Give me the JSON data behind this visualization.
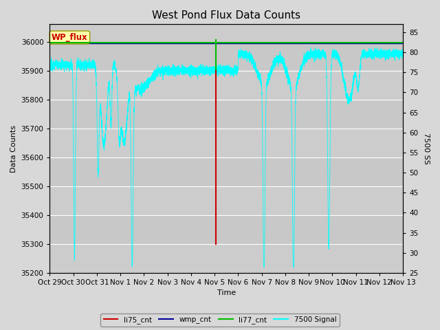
{
  "title": "West Pond Flux Data Counts",
  "xlabel": "Time",
  "ylabel": "Data Counts",
  "ylabel_right": "7500 SS",
  "ylim_left": [
    35200,
    36060
  ],
  "ylim_right": [
    25,
    87
  ],
  "fig_bg_color": "#d8d8d8",
  "plot_bg_color": "#cccccc",
  "title_fontsize": 11,
  "label_fontsize": 8,
  "tick_fontsize": 7.5,
  "legend_labels": [
    "li75_cnt",
    "wmp_cnt",
    "li77_cnt",
    "7500 Signal"
  ],
  "legend_colors": [
    "#cc0000",
    "#000099",
    "#00bb00",
    "#00cccc"
  ],
  "wp_flux_box_color": "#ffffaa",
  "wp_flux_text_color": "#cc0000",
  "x_tick_labels": [
    "Oct 29",
    "Oct 30",
    "Oct 31",
    "Nov 1",
    "Nov 2",
    "Nov 3",
    "Nov 4",
    "Nov 5",
    "Nov 6",
    "Nov 7",
    "Nov 8",
    "Nov 9",
    "Nov 10",
    "Nov 11",
    "Nov 12",
    "Nov 13"
  ],
  "num_days": 15,
  "grid_color": "#bbbbbb",
  "alt_band_color": "#c8c8c8"
}
